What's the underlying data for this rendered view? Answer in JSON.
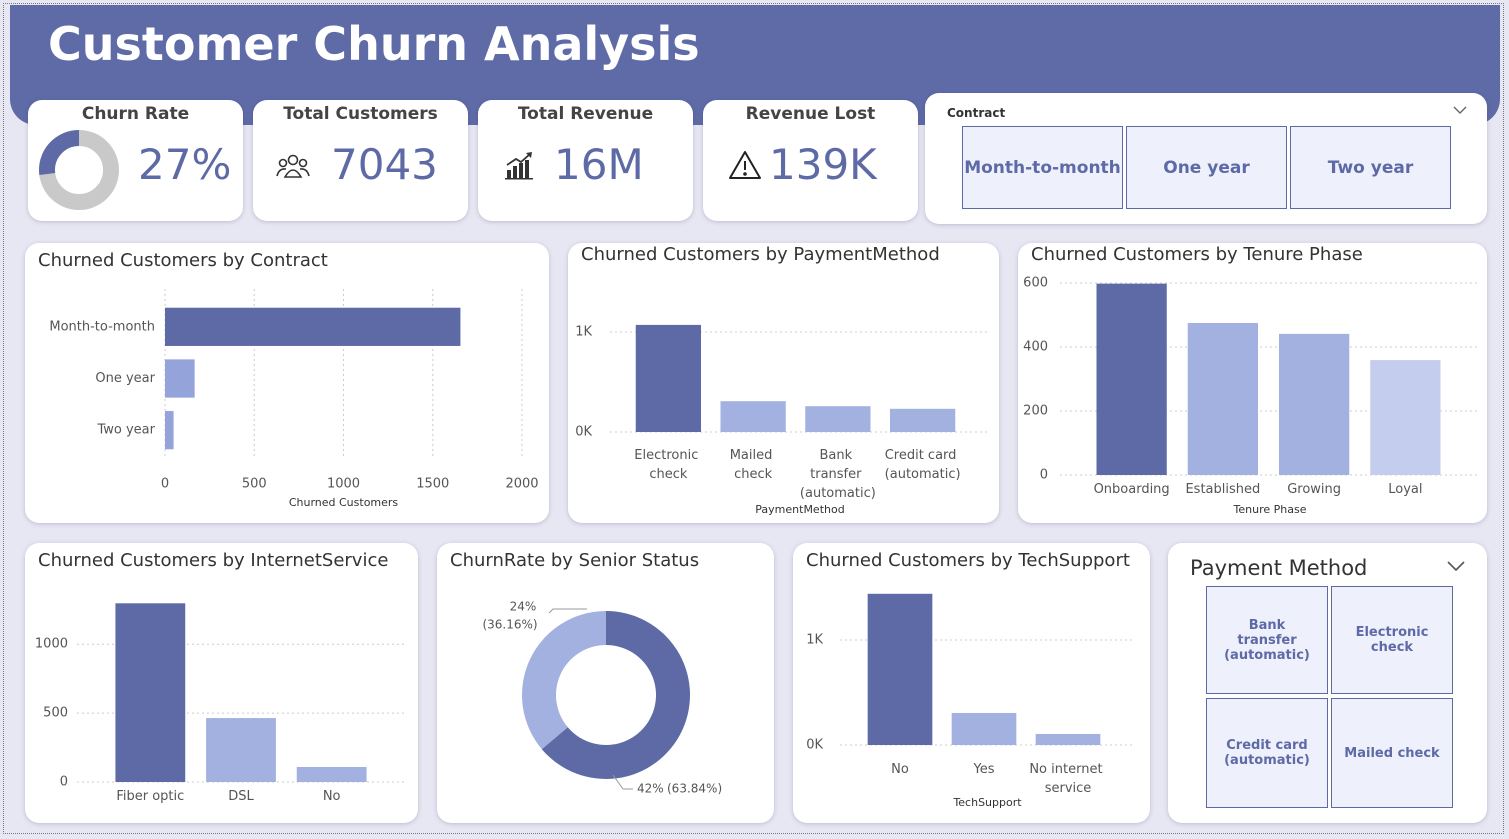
{
  "header": {
    "title": "Customer Churn Analysis"
  },
  "kpis": [
    {
      "label": "Churn Rate",
      "value": 27,
      "value_label": "27%"
    },
    {
      "label": "Total Customers",
      "value": 7043
    },
    {
      "label": "Total Revenue",
      "value": 16000000,
      "value_label": "16M"
    },
    {
      "label": "Revenue Lost",
      "value": 139000,
      "value_label": "139K"
    }
  ],
  "contract_slicer": {
    "title": "Contract",
    "items": [
      "Month-to-month",
      "One year",
      "Two year"
    ]
  },
  "chart_data": [
    {
      "type": "bar",
      "orientation": "horizontal",
      "title": "Churned Customers by Contract",
      "categories": [
        "Month-to-month",
        "One year",
        "Two year"
      ],
      "values": [
        1655,
        166,
        48
      ],
      "colors": [
        "#5d6aa6",
        "#94a3d9",
        "#94a3d9"
      ],
      "xlabel": "Churned Customers",
      "xlim": [
        0,
        2000
      ],
      "xticks": [
        0,
        500,
        1000,
        1500,
        2000
      ],
      "grid": true
    },
    {
      "type": "bar",
      "title": "Churned Customers by PaymentMethod",
      "categories": [
        "Electronic check",
        "Mailed check",
        "Bank transfer (automatic)",
        "Credit card (automatic)"
      ],
      "values": [
        1071,
        308,
        258,
        232
      ],
      "colors": [
        "#5d6aa6",
        "#a3b1e0",
        "#a3b1e0",
        "#a3b1e0"
      ],
      "xlabel": "PaymentMethod",
      "ylim": [
        0,
        1400
      ],
      "yticks": [
        {
          "value": 0,
          "label": "0K"
        },
        {
          "value": 1000,
          "label": "1K"
        }
      ],
      "grid": true
    },
    {
      "type": "bar",
      "title": "Churned Customers by Tenure Phase",
      "categories": [
        "Onboarding",
        "Established",
        "Growing",
        "Loyal"
      ],
      "values": [
        598,
        475,
        441,
        359
      ],
      "colors": [
        "#5d6aa6",
        "#a3b1e0",
        "#a3b1e0",
        "#c4cdee"
      ],
      "xlabel": "Tenure Phase",
      "ylim": [
        0,
        600
      ],
      "yticks": [
        0,
        200,
        400,
        600
      ],
      "grid": true
    },
    {
      "type": "bar",
      "title": "Churned Customers by InternetService",
      "categories": [
        "Fiber optic",
        "DSL",
        "No"
      ],
      "values": [
        1297,
        464,
        109
      ],
      "colors": [
        "#5d6aa6",
        "#a3b1e0",
        "#a3b1e0"
      ],
      "ylim": [
        0,
        1350
      ],
      "yticks": [
        0,
        500,
        1000
      ],
      "grid": true
    },
    {
      "type": "donut",
      "title": "ChurnRate by Senior Status",
      "values": [
        24,
        42
      ],
      "value_labels": [
        "24%",
        "42%"
      ],
      "shares": [
        36.16,
        63.84
      ],
      "share_labels": [
        "(36.16%)",
        "(63.84%)"
      ],
      "colors": [
        "#a3b1e0",
        "#5d6aa6"
      ]
    },
    {
      "type": "bar",
      "title": "Churned Customers by TechSupport",
      "categories": [
        "No",
        "Yes",
        "No internet service"
      ],
      "values": [
        1440,
        305,
        105
      ],
      "colors": [
        "#5d6aa6",
        "#a3b1e0",
        "#a3b1e0"
      ],
      "xlabel": "TechSupport",
      "ylim": [
        0,
        1500
      ],
      "yticks": [
        {
          "value": 0,
          "label": "0K"
        },
        {
          "value": 1000,
          "label": "1K"
        }
      ],
      "grid": true
    }
  ],
  "payment_slicer": {
    "title": "Payment Method",
    "items": [
      "Bank transfer (automatic)",
      "Electronic check",
      "Credit card (automatic)",
      "Mailed check"
    ]
  }
}
